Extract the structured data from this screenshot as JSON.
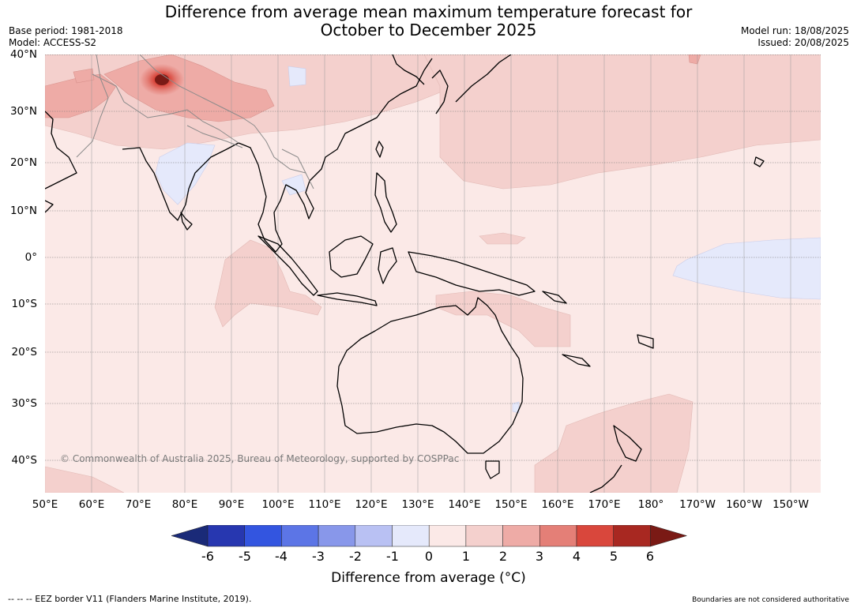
{
  "header": {
    "title_line1": "Difference from average mean maximum temperature forecast for",
    "title_line2": "October to December 2025",
    "base_period": "Base period: 1981-2018",
    "model": "Model: ACCESS-S2",
    "model_run": "Model run: 18/08/2025",
    "issued": "Issued: 20/08/2025"
  },
  "map": {
    "copyright": "© Commonwealth of Australia 2025, Bureau of Meteorology, supported by COSPPac",
    "lat_labels": [
      "40°N",
      "30°N",
      "20°N",
      "10°N",
      "0°",
      "10°S",
      "20°S",
      "30°S",
      "40°S"
    ],
    "lon_labels": [
      "50°E",
      "60°E",
      "70°E",
      "80°E",
      "90°E",
      "100°E",
      "110°E",
      "120°E",
      "130°E",
      "140°E",
      "150°E",
      "160°E",
      "170°E",
      "180°",
      "170°W",
      "160°W",
      "150°W"
    ]
  },
  "colorbar": {
    "ticks": [
      "-6",
      "-5",
      "-4",
      "-3",
      "-2",
      "-1",
      "0",
      "1",
      "2",
      "3",
      "4",
      "5",
      "6"
    ],
    "colors": [
      "#1a2a78",
      "#2737b0",
      "#3355e0",
      "#5c75e6",
      "#8897ea",
      "#b9c1f3",
      "#e5e9fb",
      "#fbe9e7",
      "#f4d0cd",
      "#eeaba6",
      "#e47f77",
      "#d9473c",
      "#a82821",
      "#7a1a15"
    ],
    "title": "Difference from average (°C)"
  },
  "footer": {
    "eez_note": "--  --  -- EEZ border V11 (Flanders Marine Institute, 2019).",
    "boundaries_note": "Boundaries are not considered authoritative"
  }
}
